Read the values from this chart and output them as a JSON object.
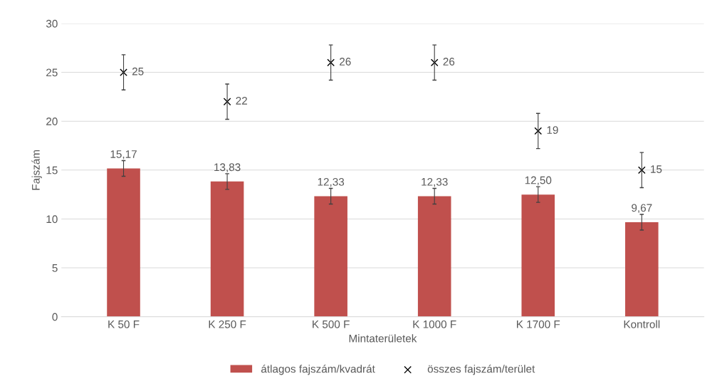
{
  "chart_data": {
    "type": "bar",
    "xlabel": "Mintaterületek",
    "ylabel": "Fajszám",
    "categories": [
      "K 50 F",
      "K 250 F",
      "K 500 F",
      "K 1000 F",
      "K 1700 F",
      "Kontroll"
    ],
    "series": [
      {
        "name": "átlagos fajszám/kvadrát",
        "color": "#c0504d",
        "values": [
          15.17,
          13.83,
          12.33,
          12.33,
          12.5,
          9.67
        ],
        "errors": [
          0.8,
          0.8,
          0.8,
          0.8,
          0.8,
          0.8
        ],
        "value_labels": [
          "15,17",
          "13,83",
          "12,33",
          "12,33",
          "12,50",
          "9,67"
        ]
      },
      {
        "name": "összes fajszám/terület",
        "type": "scatter",
        "marker": "cross",
        "color": "#000000",
        "values": [
          25,
          22,
          26,
          26,
          19,
          15
        ],
        "errors": [
          1.8,
          1.8,
          1.8,
          1.8,
          1.8,
          1.8
        ],
        "value_labels": [
          "25",
          "22",
          "26",
          "26",
          "19",
          "15"
        ]
      }
    ],
    "ylim": [
      0,
      30
    ],
    "yticks": [
      0,
      5,
      10,
      15,
      20,
      25,
      30
    ],
    "grid": "y",
    "legend": "bottom"
  }
}
